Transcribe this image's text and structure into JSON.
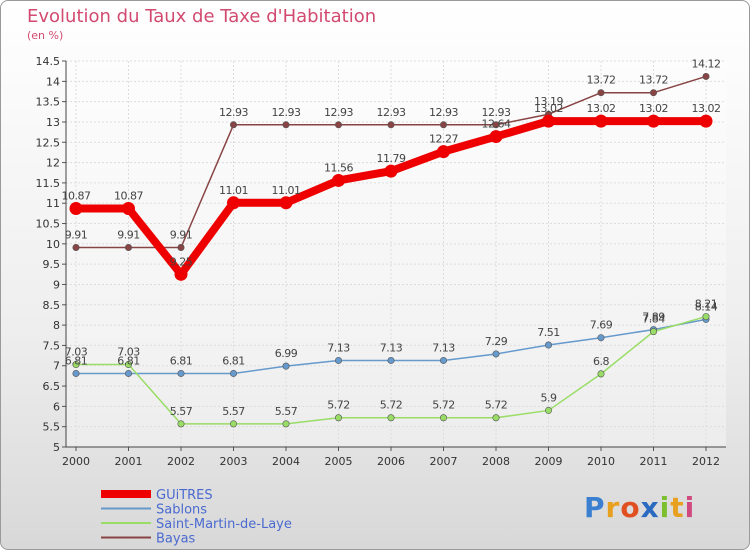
{
  "title": "Evolution du Taux de Taxe d'Habitation",
  "subtitle": "(en %)",
  "logo": "Proxiti",
  "colors": {
    "title": "#d24a70",
    "guitres": "#ee0000",
    "sablons": "#6699cc",
    "saint_martin": "#99dd66",
    "bayas": "#884444"
  },
  "chart_data": {
    "type": "line",
    "x": [
      "2000",
      "2001",
      "2002",
      "2003",
      "2004",
      "2005",
      "2006",
      "2007",
      "2008",
      "2009",
      "2010",
      "2011",
      "2012"
    ],
    "ylim": [
      5,
      14.5
    ],
    "yticks": [
      "5",
      "5.5",
      "6",
      "6.5",
      "7",
      "7.5",
      "8",
      "8.5",
      "9",
      "9.5",
      "10",
      "10.5",
      "11",
      "11.5",
      "12",
      "12.5",
      "13",
      "13.5",
      "14",
      "14.5"
    ],
    "grid": true,
    "legend_position": "bottom-left",
    "series": [
      {
        "name": "GUiTRES",
        "color": "#ee0000",
        "width": 8,
        "values": [
          10.87,
          10.87,
          9.25,
          11.01,
          11.01,
          11.56,
          11.79,
          12.27,
          12.64,
          13.02,
          13.02,
          13.02,
          13.02
        ],
        "labels": [
          "10.87",
          "10.87",
          "9.25",
          "11.01",
          "11.01",
          "11.56",
          "11.79",
          "12.27",
          "12.64",
          "13.02",
          "13.02",
          "13.02",
          "13.02"
        ]
      },
      {
        "name": "Sablons",
        "color": "#6699cc",
        "width": 1.5,
        "values": [
          6.81,
          6.81,
          6.81,
          6.81,
          6.99,
          7.13,
          7.13,
          7.13,
          7.29,
          7.51,
          7.69,
          7.89,
          8.14
        ],
        "labels": [
          "6.81",
          "6.81",
          "6.81",
          "6.81",
          "6.99",
          "7.13",
          "7.13",
          "7.13",
          "7.29",
          "7.51",
          "7.69",
          "7.89",
          "8.14"
        ]
      },
      {
        "name": "Saint-Martin-de-Laye",
        "color": "#99dd66",
        "width": 1.5,
        "values": [
          7.03,
          7.03,
          5.57,
          5.57,
          5.57,
          5.72,
          5.72,
          5.72,
          5.72,
          5.9,
          6.8,
          7.84,
          8.21
        ],
        "labels": [
          "7.03",
          "7.03",
          "5.57",
          "5.57",
          "5.57",
          "5.72",
          "5.72",
          "5.72",
          "5.72",
          "5.9",
          "6.8",
          "7.84",
          "8.21"
        ]
      },
      {
        "name": "Bayas",
        "color": "#884444",
        "width": 1.5,
        "values": [
          9.91,
          9.91,
          9.91,
          12.93,
          12.93,
          12.93,
          12.93,
          12.93,
          12.93,
          13.19,
          13.72,
          13.72,
          14.12
        ],
        "labels": [
          "9.91",
          "9.91",
          "9.91",
          "12.93",
          "12.93",
          "12.93",
          "12.93",
          "12.93",
          "12.93",
          "13.19",
          "13.72",
          "13.72",
          "14.12"
        ]
      }
    ]
  }
}
